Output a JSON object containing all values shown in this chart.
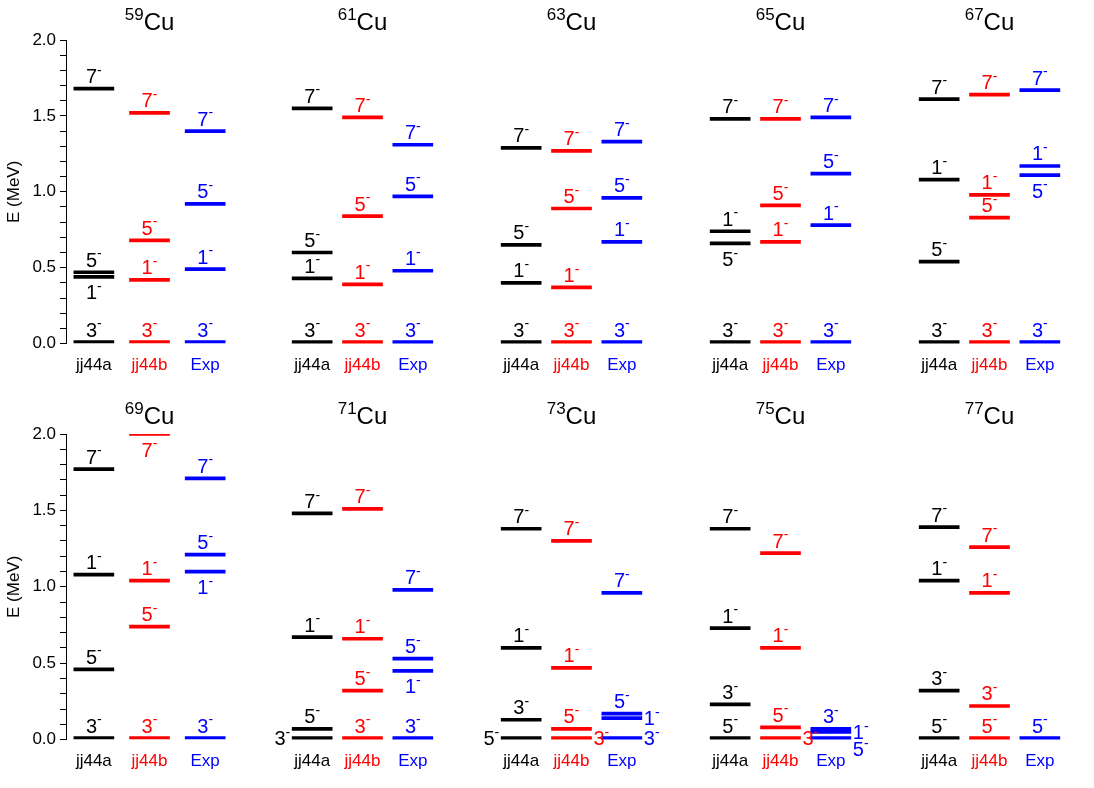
{
  "chart_data": [
    {
      "type": "bar",
      "title": "$^{59}$Cu",
      "ylabel": "E (MeV)",
      "categories": [
        "jj44a",
        "jj44b",
        "Exp"
      ],
      "ylim": [
        0,
        2
      ],
      "yticks": [
        {
          "value": 0,
          "label": "0.0"
        },
        {
          "value": 0.1,
          "label": null
        },
        {
          "value": 0.2,
          "label": null
        },
        {
          "value": 0.3,
          "label": null
        },
        {
          "value": 0.4,
          "label": null
        },
        {
          "value": 0.5,
          "label": "0.5"
        },
        {
          "value": 0.6,
          "label": null
        },
        {
          "value": 0.7,
          "label": null
        },
        {
          "value": 0.8,
          "label": null
        },
        {
          "value": 0.9,
          "label": null
        },
        {
          "value": 1,
          "label": "1.0"
        },
        {
          "value": 1.1,
          "label": null
        },
        {
          "value": 1.2,
          "label": null
        },
        {
          "value": 1.3,
          "label": null
        },
        {
          "value": 1.4,
          "label": null
        },
        {
          "value": 1.5,
          "label": "1.5"
        },
        {
          "value": 1.6,
          "label": null
        },
        {
          "value": 1.7,
          "label": null
        },
        {
          "value": 1.8,
          "label": null
        },
        {
          "value": 1.9,
          "label": null
        },
        {
          "value": 2,
          "label": "2.0"
        }
      ],
      "series": [
        {
          "name": "3$^{-}$",
          "colors": [
            "#000000",
            "#ff0000",
            "#0000ff"
          ],
          "base": [
            0,
            0,
            0
          ],
          "values": [
            0.02,
            0.02,
            0.02
          ]
        },
        {
          "name": "1$^{-}$",
          "colors": [
            "#000000",
            "#ff0000",
            "#0000ff"
          ],
          "base": [
            0.43,
            0.41,
            0.48
          ],
          "values": [
            0.02,
            0.02,
            0.02
          ]
        },
        {
          "name": "5$^{-}$",
          "colors": [
            "#000000",
            "#ff0000",
            "#0000ff"
          ],
          "base": [
            0.46,
            0.67,
            0.91
          ],
          "values": [
            0.02,
            0.02,
            0.02
          ]
        },
        {
          "name": "7$^{-}$",
          "colors": [
            "#000000",
            "#ff0000",
            "#0000ff"
          ],
          "base": [
            1.67,
            1.51,
            1.39
          ],
          "values": [
            0.02,
            0.02,
            0.02
          ]
        }
      ]
    },
    {
      "type": "bar",
      "title": "$^{61}$Cu",
      "categories": [
        "jj44a",
        "jj44b",
        "Exp"
      ],
      "ylim": [
        0,
        2
      ],
      "tick_labels": "x",
      "series": [
        {
          "name": "3$^{-}$",
          "colors": [
            "#000000",
            "#ff0000",
            "#0000ff"
          ],
          "base": [
            0,
            0,
            0
          ],
          "values": [
            0.02,
            0.02,
            0.02
          ]
        },
        {
          "name": "1$^{-}$",
          "colors": [
            "#000000",
            "#ff0000",
            "#0000ff"
          ],
          "base": [
            0.42,
            0.38,
            0.47
          ],
          "values": [
            0.02,
            0.02,
            0.02
          ]
        },
        {
          "name": "5$^{-}$",
          "colors": [
            "#000000",
            "#ff0000",
            "#0000ff"
          ],
          "base": [
            0.59,
            0.83,
            0.96
          ],
          "values": [
            0.02,
            0.02,
            0.02
          ]
        },
        {
          "name": "7$^{-}$",
          "colors": [
            "#000000",
            "#ff0000",
            "#0000ff"
          ],
          "base": [
            1.54,
            1.48,
            1.3
          ],
          "values": [
            0.02,
            0.02,
            0.02
          ]
        }
      ]
    },
    {
      "type": "bar",
      "title": "$^{63}$Cu",
      "categories": [
        "jj44a",
        "jj44b",
        "Exp"
      ],
      "ylim": [
        0,
        2
      ],
      "tick_labels": "x",
      "series": [
        {
          "name": "3$^{-}$",
          "colors": [
            "#000000",
            "#ff0000",
            "#0000ff"
          ],
          "base": [
            0,
            0,
            0
          ],
          "values": [
            0.02,
            0.02,
            0.02
          ]
        },
        {
          "name": "1$^{-}$",
          "colors": [
            "#000000",
            "#ff0000",
            "#0000ff"
          ],
          "base": [
            0.39,
            0.36,
            0.66
          ],
          "values": [
            0.02,
            0.02,
            0.02
          ]
        },
        {
          "name": "5$^{-}$",
          "colors": [
            "#000000",
            "#ff0000",
            "#0000ff"
          ],
          "base": [
            0.64,
            0.88,
            0.95
          ],
          "values": [
            0.02,
            0.02,
            0.02
          ]
        },
        {
          "name": "7$^{-}$",
          "colors": [
            "#000000",
            "#ff0000",
            "#0000ff"
          ],
          "base": [
            1.28,
            1.26,
            1.32
          ],
          "values": [
            0.02,
            0.02,
            0.02
          ]
        }
      ]
    },
    {
      "type": "bar",
      "title": "$^{65}$Cu",
      "categories": [
        "jj44a",
        "jj44b",
        "Exp"
      ],
      "ylim": [
        0,
        2
      ],
      "tick_labels": "x",
      "series": [
        {
          "name": "3$^{-}$",
          "colors": [
            "#000000",
            "#ff0000",
            "#0000ff"
          ],
          "base": [
            0,
            0,
            0
          ],
          "values": [
            0.02,
            0.02,
            0.02
          ]
        },
        {
          "name": "1$^{-}$",
          "colors": [
            "#000000",
            "#ff0000",
            "#0000ff"
          ],
          "base": [
            0.73,
            0.66,
            0.77
          ],
          "values": [
            0.02,
            0.02,
            0.02
          ]
        },
        {
          "name": "5$^{-}$",
          "colors": [
            "#000000",
            "#ff0000",
            "#0000ff"
          ],
          "base": [
            0.65,
            0.9,
            1.11
          ],
          "values": [
            0.02,
            0.02,
            0.02
          ]
        },
        {
          "name": "7$^{-}$",
          "colors": [
            "#000000",
            "#ff0000",
            "#0000ff"
          ],
          "base": [
            1.47,
            1.47,
            1.48
          ],
          "values": [
            0.02,
            0.02,
            0.02
          ]
        }
      ]
    },
    {
      "type": "bar",
      "title": "$^{67}$Cu",
      "categories": [
        "jj44a",
        "jj44b",
        "Exp"
      ],
      "ylim": [
        0,
        2
      ],
      "tick_labels": "x",
      "series": [
        {
          "name": "3$^{-}$",
          "colors": [
            "#000000",
            "#ff0000",
            "#0000ff"
          ],
          "base": [
            0,
            0,
            0
          ],
          "values": [
            0.02,
            0.02,
            0.02
          ]
        },
        {
          "name": "1$^{-}$",
          "colors": [
            "#000000",
            "#ff0000",
            "#0000ff"
          ],
          "base": [
            1.07,
            0.97,
            1.16
          ],
          "values": [
            0.02,
            0.02,
            0.02
          ]
        },
        {
          "name": "5$^{-}$",
          "colors": [
            "#000000",
            "#ff0000",
            "#0000ff"
          ],
          "base": [
            0.53,
            0.82,
            1.1
          ],
          "values": [
            0.02,
            0.02,
            0.02
          ]
        },
        {
          "name": "7$^{-}$",
          "colors": [
            "#000000",
            "#ff0000",
            "#0000ff"
          ],
          "base": [
            1.6,
            1.63,
            1.66
          ],
          "values": [
            0.02,
            0.02,
            0.02
          ]
        }
      ]
    },
    {
      "type": "bar",
      "title": "$^{69}$Cu",
      "ylabel": "E (MeV)",
      "categories": [
        "jj44a",
        "jj44b",
        "Exp"
      ],
      "ylim": [
        0,
        2
      ],
      "yticks": [
        {
          "value": 0,
          "label": "0.0"
        },
        {
          "value": 0.1,
          "label": null
        },
        {
          "value": 0.2,
          "label": null
        },
        {
          "value": 0.3,
          "label": null
        },
        {
          "value": 0.4,
          "label": null
        },
        {
          "value": 0.5,
          "label": "0.5"
        },
        {
          "value": 0.6,
          "label": null
        },
        {
          "value": 0.7,
          "label": null
        },
        {
          "value": 0.8,
          "label": null
        },
        {
          "value": 0.9,
          "label": null
        },
        {
          "value": 1,
          "label": "1.0"
        },
        {
          "value": 1.1,
          "label": null
        },
        {
          "value": 1.2,
          "label": null
        },
        {
          "value": 1.3,
          "label": null
        },
        {
          "value": 1.4,
          "label": null
        },
        {
          "value": 1.5,
          "label": "1.5"
        },
        {
          "value": 1.6,
          "label": null
        },
        {
          "value": 1.7,
          "label": null
        },
        {
          "value": 1.8,
          "label": null
        },
        {
          "value": 1.9,
          "label": null
        },
        {
          "value": 2,
          "label": "2.0"
        }
      ],
      "series": [
        {
          "name": "3$^{-}$",
          "colors": [
            "#000000",
            "#ff0000",
            "#0000ff"
          ],
          "base": [
            0,
            0,
            0
          ],
          "values": [
            0.02,
            0.02,
            0.02
          ]
        },
        {
          "name": "1$^{-}$",
          "colors": [
            "#000000",
            "#ff0000",
            "#0000ff"
          ],
          "base": [
            1.07,
            1.03,
            1.09
          ],
          "values": [
            0.02,
            0.02,
            0.02
          ]
        },
        {
          "name": "5$^{-}$",
          "colors": [
            "#000000",
            "#ff0000",
            "#0000ff"
          ],
          "base": [
            0.45,
            0.73,
            1.2
          ],
          "values": [
            0.02,
            0.02,
            0.02
          ]
        },
        {
          "name": "7$^{-}$",
          "colors": [
            "#000000",
            "#ff0000",
            "#0000ff"
          ],
          "base": [
            1.76,
            1.99,
            1.7
          ],
          "values": [
            0.02,
            0.01,
            0.02
          ]
        }
      ]
    },
    {
      "type": "bar",
      "title": "$^{71}$Cu",
      "categories": [
        "jj44a",
        "jj44b",
        "Exp"
      ],
      "ylim": [
        0,
        2
      ],
      "tick_labels": "x",
      "series": [
        {
          "name": "3$^{-}$",
          "colors": [
            "#000000",
            "#ff0000",
            "#0000ff"
          ],
          "base": [
            0,
            0,
            0
          ],
          "values": [
            0.02,
            0.02,
            0.02
          ]
        },
        {
          "name": "1$^{-}$",
          "colors": [
            "#000000",
            "#ff0000",
            "#0000ff"
          ],
          "base": [
            0.66,
            0.65,
            0.44
          ],
          "values": [
            0.02,
            0.02,
            0.02
          ]
        },
        {
          "name": "5$^{-}$",
          "colors": [
            "#000000",
            "#ff0000",
            "#0000ff"
          ],
          "base": [
            0.06,
            0.31,
            0.52
          ],
          "values": [
            0.02,
            0.02,
            0.02
          ]
        },
        {
          "name": "7$^{-}$",
          "colors": [
            "#000000",
            "#ff0000",
            "#0000ff"
          ],
          "base": [
            1.47,
            1.5,
            0.97
          ],
          "values": [
            0.02,
            0.02,
            0.02
          ]
        }
      ]
    },
    {
      "type": "bar",
      "title": "$^{73}$Cu",
      "categories": [
        "jj44a",
        "jj44b",
        "Exp"
      ],
      "ylim": [
        0,
        2
      ],
      "tick_labels": "x",
      "series": [
        {
          "name": "5$^{-}$",
          "colors": [
            "#000000",
            "#ff0000",
            "#0000ff"
          ],
          "base": [
            0,
            0.06,
            0.16
          ],
          "values": [
            0.02,
            0.02,
            0.02
          ]
        },
        {
          "name": "3$^{-}$",
          "colors": [
            "#000000",
            "#ff0000",
            "#0000ff"
          ],
          "base": [
            0.12,
            0,
            0
          ],
          "values": [
            0.02,
            0.02,
            0.02
          ]
        },
        {
          "name": "1$^{-}$",
          "colors": [
            "#000000",
            "#ff0000",
            "#0000ff"
          ],
          "base": [
            0.59,
            0.46,
            0.13
          ],
          "values": [
            0.02,
            0.02,
            0.02
          ]
        },
        {
          "name": "7$^{-}$",
          "colors": [
            "#000000",
            "#ff0000",
            "#0000ff"
          ],
          "base": [
            1.37,
            1.29,
            0.95
          ],
          "values": [
            0.02,
            0.02,
            0.02
          ]
        }
      ]
    },
    {
      "type": "bar",
      "title": "$^{75}$Cu",
      "categories": [
        "jj44a",
        "jj44b",
        "Exp"
      ],
      "ylim": [
        0,
        2
      ],
      "tick_labels": "x",
      "series": [
        {
          "name": "5$^{-}$",
          "colors": [
            "#000000",
            "#ff0000",
            "#0000ff"
          ],
          "base": [
            0,
            0.07,
            0
          ],
          "values": [
            0.02,
            0.02,
            0.02
          ]
        },
        {
          "name": "3$^{-}$",
          "colors": [
            "#000000",
            "#ff0000",
            "#0000ff"
          ],
          "base": [
            0.22,
            0,
            0.06
          ],
          "values": [
            0.02,
            0.02,
            0.02
          ]
        },
        {
          "name": "1$^{-}$",
          "colors": [
            "#000000",
            "#ff0000",
            "#0000ff"
          ],
          "base": [
            0.72,
            0.59,
            0.04
          ],
          "values": [
            0.02,
            0.02,
            0.02
          ]
        },
        {
          "name": "7$^{-}$",
          "colors": [
            "#000000",
            "#ff0000",
            "#0000ff"
          ],
          "base": [
            1.37,
            1.21,
            null
          ],
          "values": [
            0.02,
            0.02,
            null
          ]
        }
      ]
    },
    {
      "type": "bar",
      "title": "$^{77}$Cu",
      "categories": [
        "jj44a",
        "jj44b",
        "Exp"
      ],
      "ylim": [
        0,
        2
      ],
      "tick_labels": "x",
      "series": [
        {
          "name": "5$^{-}$",
          "colors": [
            "#000000",
            "#ff0000",
            "#0000ff"
          ],
          "base": [
            0,
            0,
            0
          ],
          "values": [
            0.02,
            0.02,
            0.02
          ]
        },
        {
          "name": "3$^{-}$",
          "colors": [
            "#000000",
            "#ff0000",
            "#0000ff"
          ],
          "base": [
            0.31,
            0.21,
            null
          ],
          "values": [
            0.02,
            0.02,
            null
          ]
        },
        {
          "name": "1$^{-}$",
          "colors": [
            "#000000",
            "#ff0000",
            "#0000ff"
          ],
          "base": [
            1.03,
            0.95,
            null
          ],
          "values": [
            0.02,
            0.02,
            null
          ]
        },
        {
          "name": "7$^{-}$",
          "colors": [
            "#000000",
            "#ff0000",
            "#0000ff"
          ],
          "base": [
            1.38,
            1.25,
            null
          ],
          "values": [
            0.02,
            0.02,
            null
          ]
        }
      ]
    }
  ]
}
